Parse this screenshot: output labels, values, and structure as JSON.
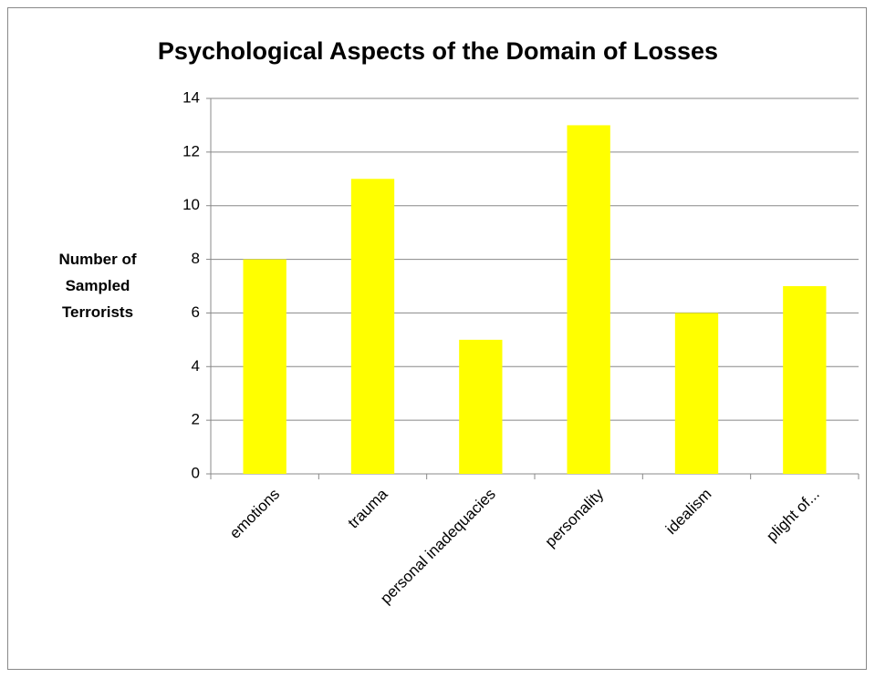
{
  "chart_data": {
    "type": "bar",
    "title": "Psychological Aspects of the Domain of Losses",
    "y_label": "Number of Sampled Terrorists",
    "categories": [
      "emotions",
      "trauma",
      "personal inadequacies",
      "personality",
      "idealism",
      "plight of..."
    ],
    "values": [
      8,
      11,
      5,
      13,
      6,
      7
    ],
    "color": "#ffff00",
    "ylim": [
      0,
      14
    ],
    "yticks": [
      0,
      2,
      4,
      6,
      8,
      10,
      12,
      14
    ],
    "grid": true
  }
}
